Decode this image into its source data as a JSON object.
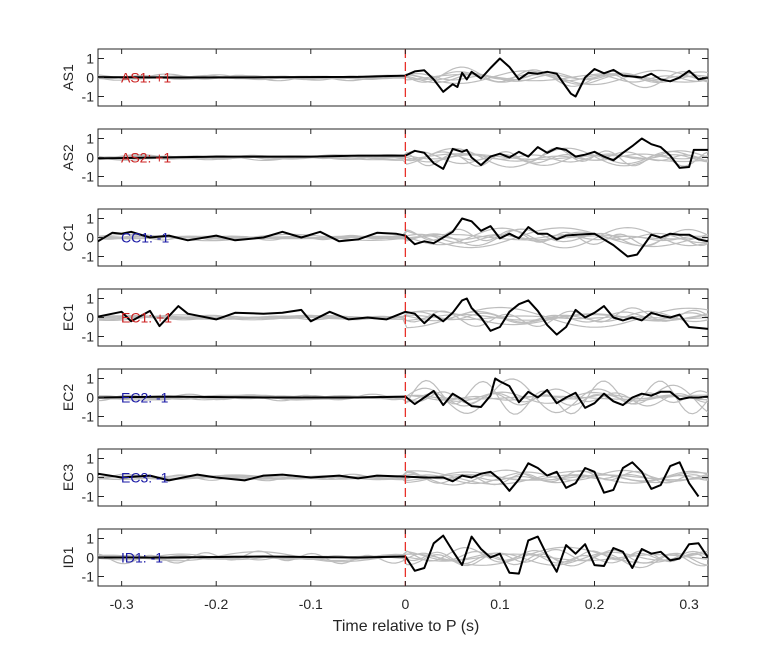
{
  "chart_data": {
    "type": "line",
    "xlabel": "Time relative to P (s)",
    "xlim": [
      -0.325,
      0.32
    ],
    "x_ticks": [
      -0.3,
      -0.2,
      -0.1,
      0,
      0.1,
      0.2,
      0.3
    ],
    "x_tick_labels": [
      "-0.3",
      "-0.2",
      "-0.1",
      "0",
      "0.1",
      "0.2",
      "0.3"
    ],
    "ylim": [
      -1.5,
      1.5
    ],
    "y_ticks": [
      -1,
      0,
      1
    ],
    "y_tick_labels": [
      "-1",
      "0",
      "1"
    ],
    "marker_line": {
      "x": 0,
      "color": "#e8312a",
      "style": "dashed"
    },
    "colors": {
      "main": "#000000",
      "background_traces": "#bdbdbd",
      "positive_label": "#cc2222",
      "negative_label": "#1a1aa6"
    },
    "panels": [
      {
        "ylabel": "AS1",
        "annotation": "AS1: +1",
        "sign": "+",
        "main": [
          [
            -0.325,
            0.02
          ],
          [
            -0.25,
            0.0
          ],
          [
            -0.15,
            0.01
          ],
          [
            -0.05,
            0.03
          ],
          [
            0,
            0.1
          ],
          [
            0.01,
            0.32
          ],
          [
            0.02,
            0.38
          ],
          [
            0.03,
            -0.1
          ],
          [
            0.04,
            -0.75
          ],
          [
            0.05,
            -0.35
          ],
          [
            0.055,
            -0.5
          ],
          [
            0.06,
            0.25
          ],
          [
            0.065,
            -0.1
          ],
          [
            0.07,
            0.3
          ],
          [
            0.08,
            -0.05
          ],
          [
            0.09,
            0.5
          ],
          [
            0.1,
            1.0
          ],
          [
            0.11,
            0.55
          ],
          [
            0.12,
            -0.1
          ],
          [
            0.13,
            0.25
          ],
          [
            0.14,
            0.2
          ],
          [
            0.15,
            0.3
          ],
          [
            0.16,
            0.2
          ],
          [
            0.17,
            -0.5
          ],
          [
            0.175,
            -0.85
          ],
          [
            0.18,
            -1.0
          ],
          [
            0.19,
            0.0
          ],
          [
            0.2,
            0.45
          ],
          [
            0.21,
            0.22
          ],
          [
            0.22,
            0.4
          ],
          [
            0.23,
            0.1
          ],
          [
            0.25,
            0.0
          ],
          [
            0.26,
            0.2
          ],
          [
            0.27,
            -0.1
          ],
          [
            0.28,
            -0.2
          ],
          [
            0.29,
            0.0
          ],
          [
            0.3,
            0.35
          ],
          [
            0.31,
            -0.1
          ],
          [
            0.32,
            0.0
          ]
        ]
      },
      {
        "ylabel": "AS2",
        "annotation": "AS2: +1",
        "sign": "+",
        "main": [
          [
            -0.325,
            -0.05
          ],
          [
            -0.2,
            0.05
          ],
          [
            -0.1,
            0.05
          ],
          [
            -0.05,
            0.1
          ],
          [
            0,
            0.1
          ],
          [
            0.01,
            0.35
          ],
          [
            0.02,
            0.25
          ],
          [
            0.03,
            -0.3
          ],
          [
            0.04,
            -0.6
          ],
          [
            0.05,
            0.45
          ],
          [
            0.06,
            0.3
          ],
          [
            0.065,
            0.4
          ],
          [
            0.07,
            0.0
          ],
          [
            0.08,
            -0.4
          ],
          [
            0.09,
            0.05
          ],
          [
            0.1,
            0.2
          ],
          [
            0.11,
            0.0
          ],
          [
            0.12,
            0.3
          ],
          [
            0.13,
            0.05
          ],
          [
            0.14,
            0.55
          ],
          [
            0.15,
            0.25
          ],
          [
            0.16,
            0.5
          ],
          [
            0.17,
            0.4
          ],
          [
            0.18,
            0.05
          ],
          [
            0.19,
            0.15
          ],
          [
            0.2,
            0.3
          ],
          [
            0.21,
            0.05
          ],
          [
            0.22,
            -0.15
          ],
          [
            0.23,
            0.25
          ],
          [
            0.24,
            0.6
          ],
          [
            0.25,
            1.0
          ],
          [
            0.26,
            0.7
          ],
          [
            0.27,
            0.55
          ],
          [
            0.28,
            0.1
          ],
          [
            0.29,
            -0.55
          ],
          [
            0.3,
            -0.5
          ],
          [
            0.305,
            0.4
          ],
          [
            0.32,
            0.4
          ]
        ]
      },
      {
        "ylabel": "CC1",
        "annotation": "CC1: -1",
        "sign": "-",
        "main": [
          [
            -0.325,
            -0.2
          ],
          [
            -0.31,
            0.25
          ],
          [
            -0.3,
            0.2
          ],
          [
            -0.29,
            0.3
          ],
          [
            -0.27,
            0.0
          ],
          [
            -0.25,
            0.1
          ],
          [
            -0.23,
            -0.15
          ],
          [
            -0.2,
            0.1
          ],
          [
            -0.18,
            -0.15
          ],
          [
            -0.15,
            0.0
          ],
          [
            -0.13,
            0.3
          ],
          [
            -0.11,
            0.0
          ],
          [
            -0.09,
            0.3
          ],
          [
            -0.07,
            -0.2
          ],
          [
            -0.05,
            -0.1
          ],
          [
            -0.03,
            0.25
          ],
          [
            -0.01,
            0.2
          ],
          [
            0.0,
            0.1
          ],
          [
            0.01,
            -0.35
          ],
          [
            0.02,
            -0.2
          ],
          [
            0.03,
            -0.3
          ],
          [
            0.05,
            0.3
          ],
          [
            0.06,
            1.0
          ],
          [
            0.07,
            0.85
          ],
          [
            0.08,
            0.35
          ],
          [
            0.09,
            0.6
          ],
          [
            0.1,
            -0.05
          ],
          [
            0.11,
            0.2
          ],
          [
            0.12,
            -0.05
          ],
          [
            0.13,
            0.55
          ],
          [
            0.14,
            0.2
          ],
          [
            0.15,
            0.2
          ],
          [
            0.16,
            -0.1
          ],
          [
            0.17,
            0.1
          ],
          [
            0.18,
            0.15
          ],
          [
            0.2,
            0.2
          ],
          [
            0.22,
            -0.4
          ],
          [
            0.235,
            -1.0
          ],
          [
            0.245,
            -0.9
          ],
          [
            0.26,
            0.15
          ],
          [
            0.27,
            0.0
          ],
          [
            0.28,
            0.2
          ],
          [
            0.29,
            0.15
          ],
          [
            0.3,
            0.15
          ],
          [
            0.31,
            -0.1
          ],
          [
            0.32,
            -0.2
          ]
        ]
      },
      {
        "ylabel": "EC1",
        "annotation": "EC1: +1",
        "sign": "+",
        "main": [
          [
            -0.325,
            0.05
          ],
          [
            -0.3,
            0.3
          ],
          [
            -0.29,
            -0.2
          ],
          [
            -0.27,
            0.35
          ],
          [
            -0.26,
            -0.45
          ],
          [
            -0.24,
            0.6
          ],
          [
            -0.23,
            0.2
          ],
          [
            -0.2,
            -0.1
          ],
          [
            -0.18,
            0.25
          ],
          [
            -0.15,
            0.2
          ],
          [
            -0.13,
            0.25
          ],
          [
            -0.11,
            0.4
          ],
          [
            -0.1,
            -0.2
          ],
          [
            -0.08,
            0.3
          ],
          [
            -0.06,
            -0.1
          ],
          [
            -0.04,
            0.0
          ],
          [
            -0.02,
            -0.1
          ],
          [
            0.0,
            0.3
          ],
          [
            0.01,
            0.2
          ],
          [
            0.02,
            -0.3
          ],
          [
            0.03,
            0.15
          ],
          [
            0.04,
            -0.2
          ],
          [
            0.05,
            0.25
          ],
          [
            0.06,
            0.9
          ],
          [
            0.065,
            1.0
          ],
          [
            0.07,
            0.5
          ],
          [
            0.08,
            0.0
          ],
          [
            0.09,
            -0.7
          ],
          [
            0.1,
            -0.5
          ],
          [
            0.11,
            0.3
          ],
          [
            0.12,
            0.7
          ],
          [
            0.13,
            0.9
          ],
          [
            0.14,
            0.35
          ],
          [
            0.15,
            -0.4
          ],
          [
            0.16,
            -0.9
          ],
          [
            0.17,
            -0.5
          ],
          [
            0.18,
            0.4
          ],
          [
            0.19,
            0.0
          ],
          [
            0.2,
            0.25
          ],
          [
            0.21,
            0.6
          ],
          [
            0.22,
            0.0
          ],
          [
            0.23,
            -0.15
          ],
          [
            0.24,
            0.0
          ],
          [
            0.25,
            -0.15
          ],
          [
            0.26,
            0.25
          ],
          [
            0.27,
            0.1
          ],
          [
            0.28,
            0.0
          ],
          [
            0.29,
            0.15
          ],
          [
            0.3,
            -0.5
          ],
          [
            0.32,
            -0.6
          ]
        ]
      },
      {
        "ylabel": "EC2",
        "annotation": "EC2: -1",
        "sign": "-",
        "main": [
          [
            -0.325,
            0.0
          ],
          [
            -0.25,
            0.05
          ],
          [
            -0.15,
            0.0
          ],
          [
            -0.05,
            0.0
          ],
          [
            0.0,
            0.05
          ],
          [
            0.01,
            -0.35
          ],
          [
            0.02,
            0.0
          ],
          [
            0.03,
            0.35
          ],
          [
            0.04,
            -0.4
          ],
          [
            0.05,
            0.2
          ],
          [
            0.06,
            -0.1
          ],
          [
            0.07,
            -0.45
          ],
          [
            0.08,
            -0.5
          ],
          [
            0.09,
            0.1
          ],
          [
            0.095,
            1.0
          ],
          [
            0.1,
            0.85
          ],
          [
            0.11,
            0.6
          ],
          [
            0.12,
            -0.25
          ],
          [
            0.13,
            0.3
          ],
          [
            0.14,
            0.0
          ],
          [
            0.15,
            0.4
          ],
          [
            0.16,
            -0.3
          ],
          [
            0.17,
            0.0
          ],
          [
            0.18,
            0.25
          ],
          [
            0.19,
            -0.55
          ],
          [
            0.2,
            -0.3
          ],
          [
            0.21,
            0.2
          ],
          [
            0.22,
            -0.2
          ],
          [
            0.23,
            -0.4
          ],
          [
            0.24,
            0.0
          ],
          [
            0.25,
            0.2
          ],
          [
            0.26,
            0.1
          ],
          [
            0.27,
            0.3
          ],
          [
            0.28,
            0.3
          ],
          [
            0.29,
            -0.1
          ],
          [
            0.3,
            0.0
          ],
          [
            0.31,
            0.0
          ],
          [
            0.32,
            0.05
          ]
        ]
      },
      {
        "ylabel": "EC3",
        "annotation": "EC3: -1",
        "sign": "-",
        "main": [
          [
            -0.325,
            0.2
          ],
          [
            -0.3,
            0.0
          ],
          [
            -0.27,
            0.1
          ],
          [
            -0.25,
            -0.15
          ],
          [
            -0.22,
            0.15
          ],
          [
            -0.2,
            0.0
          ],
          [
            -0.17,
            -0.15
          ],
          [
            -0.15,
            0.1
          ],
          [
            -0.13,
            0.15
          ],
          [
            -0.1,
            0.0
          ],
          [
            -0.07,
            0.1
          ],
          [
            -0.05,
            -0.05
          ],
          [
            -0.03,
            0.1
          ],
          [
            0.0,
            0.05
          ],
          [
            0.02,
            0.0
          ],
          [
            0.04,
            0.0
          ],
          [
            0.05,
            -0.2
          ],
          [
            0.06,
            0.1
          ],
          [
            0.07,
            0.0
          ],
          [
            0.08,
            0.2
          ],
          [
            0.09,
            0.3
          ],
          [
            0.1,
            -0.1
          ],
          [
            0.11,
            -0.7
          ],
          [
            0.12,
            -0.1
          ],
          [
            0.13,
            0.75
          ],
          [
            0.14,
            0.5
          ],
          [
            0.15,
            0.1
          ],
          [
            0.16,
            0.3
          ],
          [
            0.17,
            -0.55
          ],
          [
            0.18,
            -0.3
          ],
          [
            0.19,
            0.5
          ],
          [
            0.2,
            0.3
          ],
          [
            0.21,
            -0.8
          ],
          [
            0.22,
            -0.65
          ],
          [
            0.23,
            0.5
          ],
          [
            0.24,
            0.8
          ],
          [
            0.25,
            0.3
          ],
          [
            0.26,
            -0.6
          ],
          [
            0.27,
            -0.4
          ],
          [
            0.28,
            0.6
          ],
          [
            0.29,
            0.8
          ],
          [
            0.3,
            -0.3
          ],
          [
            0.31,
            -1.0
          ]
        ]
      },
      {
        "ylabel": "ID1",
        "annotation": "ID1: -1",
        "sign": "-",
        "main": [
          [
            -0.325,
            0.0
          ],
          [
            -0.25,
            0.0
          ],
          [
            -0.15,
            0.05
          ],
          [
            -0.05,
            0.0
          ],
          [
            0.0,
            0.05
          ],
          [
            0.01,
            -0.7
          ],
          [
            0.02,
            -0.55
          ],
          [
            0.03,
            0.75
          ],
          [
            0.04,
            1.15
          ],
          [
            0.05,
            0.35
          ],
          [
            0.06,
            -0.4
          ],
          [
            0.07,
            1.1
          ],
          [
            0.08,
            0.45
          ],
          [
            0.09,
            0.0
          ],
          [
            0.1,
            0.2
          ],
          [
            0.11,
            -0.8
          ],
          [
            0.12,
            -0.85
          ],
          [
            0.13,
            0.9
          ],
          [
            0.14,
            1.1
          ],
          [
            0.15,
            0.1
          ],
          [
            0.16,
            -0.75
          ],
          [
            0.17,
            0.65
          ],
          [
            0.18,
            0.2
          ],
          [
            0.19,
            0.7
          ],
          [
            0.2,
            -0.4
          ],
          [
            0.21,
            -0.45
          ],
          [
            0.22,
            0.5
          ],
          [
            0.23,
            0.3
          ],
          [
            0.24,
            -0.55
          ],
          [
            0.25,
            0.45
          ],
          [
            0.26,
            0.2
          ],
          [
            0.27,
            0.3
          ],
          [
            0.28,
            -0.15
          ],
          [
            0.29,
            -0.05
          ],
          [
            0.3,
            0.7
          ],
          [
            0.31,
            0.75
          ],
          [
            0.32,
            0.0
          ]
        ]
      }
    ]
  }
}
